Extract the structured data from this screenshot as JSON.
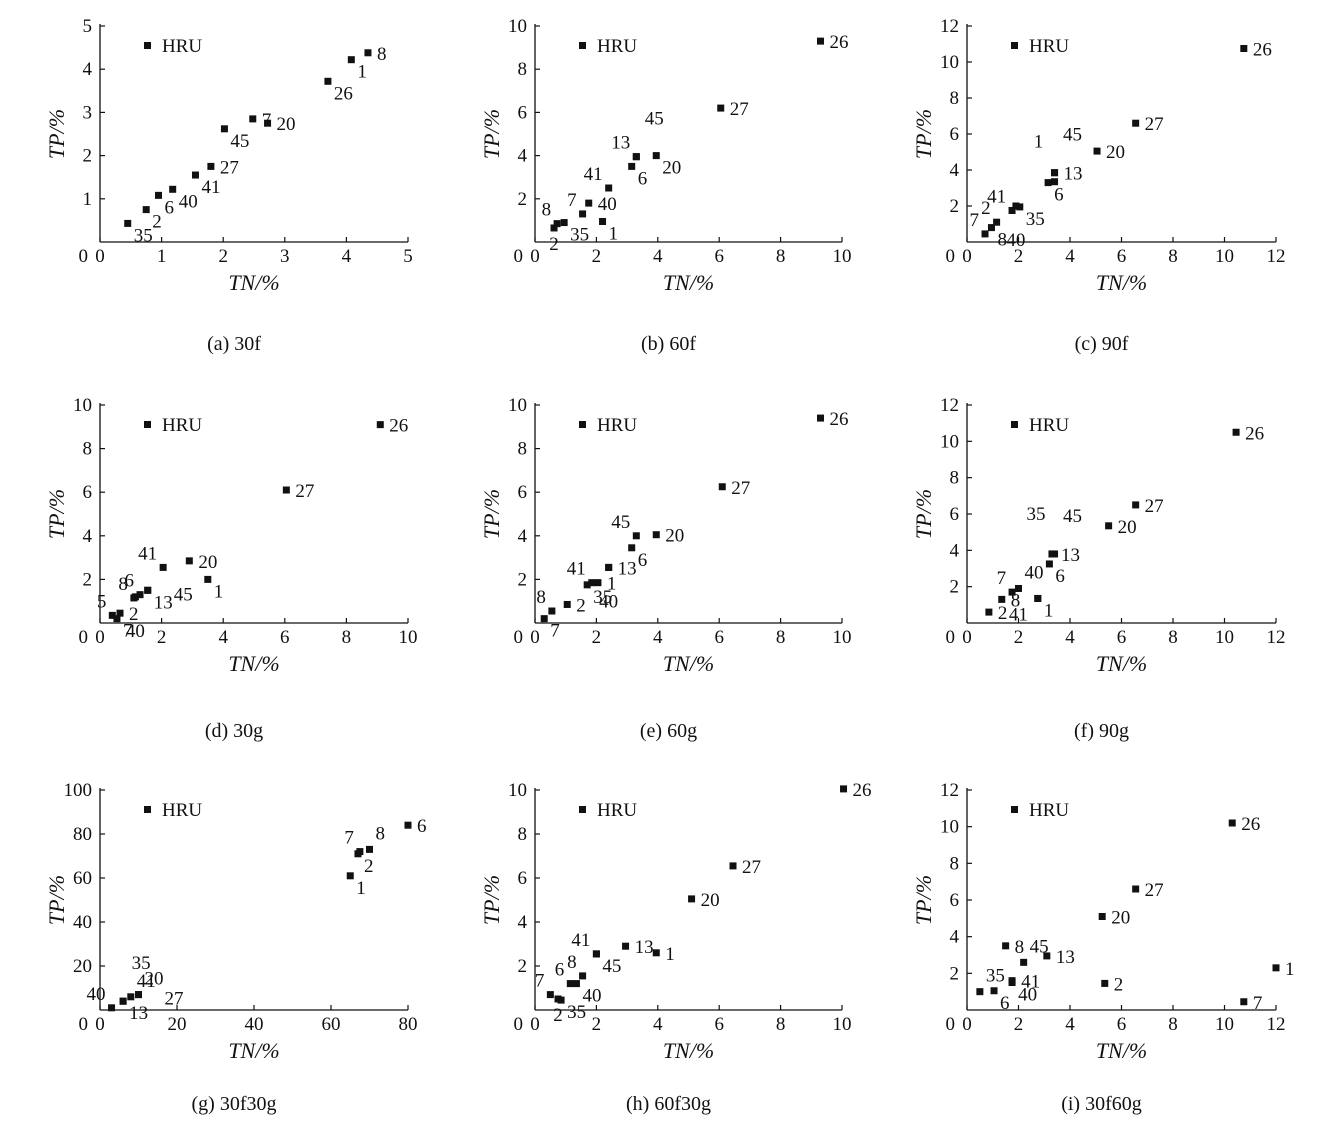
{
  "chart_data": [
    {
      "id": "a",
      "caption": "(a) 30f",
      "type": "scatter",
      "xlabel": "TN/%",
      "ylabel": "TP/%",
      "xlim": [
        0,
        5
      ],
      "ylim": [
        0,
        5
      ],
      "xticks": [
        0,
        1,
        2,
        3,
        4,
        5
      ],
      "yticks": [
        1,
        2,
        3,
        4,
        5
      ],
      "legend": "HRU",
      "legend_position": "top-left",
      "points": [
        {
          "label": "35",
          "x": 0.45,
          "y": 0.43,
          "pos": "below-right"
        },
        {
          "label": "2",
          "x": 0.75,
          "y": 0.75,
          "pos": "below-right"
        },
        {
          "label": "6",
          "x": 0.95,
          "y": 1.08,
          "pos": "below-right"
        },
        {
          "label": "40",
          "x": 1.18,
          "y": 1.22,
          "pos": "below-right"
        },
        {
          "label": "41",
          "x": 1.55,
          "y": 1.55,
          "pos": "below-right"
        },
        {
          "label": "27",
          "x": 1.8,
          "y": 1.75,
          "pos": "right"
        },
        {
          "label": "45",
          "x": 2.02,
          "y": 2.62,
          "pos": "below-right"
        },
        {
          "label": "7",
          "x": 2.48,
          "y": 2.85,
          "pos": "right"
        },
        {
          "label": "20",
          "x": 2.72,
          "y": 2.75,
          "pos": "right"
        },
        {
          "label": "26",
          "x": 3.7,
          "y": 3.72,
          "pos": "below-right"
        },
        {
          "label": "1",
          "x": 4.08,
          "y": 4.22,
          "pos": "below-right"
        },
        {
          "label": "8",
          "x": 4.35,
          "y": 4.38,
          "pos": "right"
        }
      ]
    },
    {
      "id": "b",
      "caption": "(b) 60f",
      "type": "scatter",
      "xlabel": "TN/%",
      "ylabel": "TP/%",
      "xlim": [
        0,
        10
      ],
      "ylim": [
        0,
        10
      ],
      "xticks": [
        0,
        2,
        4,
        6,
        8,
        10
      ],
      "yticks": [
        2,
        4,
        6,
        8,
        10
      ],
      "legend": "HRU",
      "legend_position": "top-left",
      "points": [
        {
          "label": "2",
          "x": 0.62,
          "y": 0.65,
          "pos": "below"
        },
        {
          "label": "8",
          "x": 0.72,
          "y": 0.85,
          "pos": "above-left"
        },
        {
          "label": "35",
          "x": 0.95,
          "y": 0.9,
          "pos": "below-right"
        },
        {
          "label": "7",
          "x": 1.55,
          "y": 1.3,
          "pos": "above-left"
        },
        {
          "label": "40",
          "x": 1.75,
          "y": 1.8,
          "pos": "right"
        },
        {
          "label": "1",
          "x": 2.2,
          "y": 0.95,
          "pos": "below-right"
        },
        {
          "label": "41",
          "x": 2.4,
          "y": 2.5,
          "pos": "above-left"
        },
        {
          "label": "6",
          "x": 3.15,
          "y": 3.5,
          "pos": "below-right"
        },
        {
          "label": "13",
          "x": 3.3,
          "y": 3.95,
          "pos": "above-left"
        },
        {
          "label": "45",
          "x": 3.3,
          "y": 3.95,
          "pos": "above-far"
        },
        {
          "label": "20",
          "x": 3.95,
          "y": 4.0,
          "pos": "below-right"
        },
        {
          "label": "27",
          "x": 6.05,
          "y": 6.2,
          "pos": "right"
        },
        {
          "label": "26",
          "x": 9.3,
          "y": 9.3,
          "pos": "right"
        }
      ]
    },
    {
      "id": "c",
      "caption": "(c) 90f",
      "type": "scatter",
      "xlabel": "TN/%",
      "ylabel": "TP/%",
      "xlim": [
        0,
        12
      ],
      "ylim": [
        0,
        12
      ],
      "xticks": [
        0,
        2,
        4,
        6,
        8,
        10,
        12
      ],
      "yticks": [
        2,
        4,
        6,
        8,
        10,
        12
      ],
      "legend": "HRU",
      "legend_position": "top-left",
      "points": [
        {
          "label": "7",
          "x": 0.7,
          "y": 0.45,
          "pos": "above-left"
        },
        {
          "label": "8",
          "x": 0.95,
          "y": 0.8,
          "pos": "below-right"
        },
        {
          "label": "2",
          "x": 1.15,
          "y": 1.1,
          "pos": "above-left"
        },
        {
          "label": "40",
          "x": 1.9,
          "y": 2.0,
          "pos": "below-far"
        },
        {
          "label": "41",
          "x": 1.75,
          "y": 1.75,
          "pos": "above-left"
        },
        {
          "label": "35",
          "x": 2.05,
          "y": 1.95,
          "pos": "below-right"
        },
        {
          "label": "6",
          "x": 3.15,
          "y": 3.3,
          "pos": "below-right"
        },
        {
          "label": "1",
          "x": 3.4,
          "y": 3.35,
          "pos": "above-left-far"
        },
        {
          "label": "13",
          "x": 3.4,
          "y": 3.85,
          "pos": "right"
        },
        {
          "label": "45",
          "x": 3.4,
          "y": 3.85,
          "pos": "above-far"
        },
        {
          "label": "20",
          "x": 5.05,
          "y": 5.05,
          "pos": "right"
        },
        {
          "label": "27",
          "x": 6.55,
          "y": 6.6,
          "pos": "right"
        },
        {
          "label": "26",
          "x": 10.75,
          "y": 10.75,
          "pos": "right"
        }
      ]
    },
    {
      "id": "d",
      "caption": "(d) 30g",
      "type": "scatter",
      "xlabel": "TN/%",
      "ylabel": "TP/%",
      "xlim": [
        0,
        10
      ],
      "ylim": [
        0,
        10
      ],
      "xticks": [
        0,
        2,
        4,
        6,
        8,
        10
      ],
      "yticks": [
        2,
        4,
        6,
        8,
        10
      ],
      "legend": "HRU",
      "legend_position": "top-left",
      "points": [
        {
          "label": "5",
          "x": 0.4,
          "y": 0.35,
          "pos": "above-left"
        },
        {
          "label": "7",
          "x": 0.55,
          "y": 0.2,
          "pos": "below-right"
        },
        {
          "label": "2",
          "x": 0.65,
          "y": 0.45,
          "pos": "right"
        },
        {
          "label": "8",
          "x": 1.1,
          "y": 1.15,
          "pos": "above-left"
        },
        {
          "label": "40",
          "x": 1.15,
          "y": 1.2,
          "pos": "below-far"
        },
        {
          "label": "6",
          "x": 1.3,
          "y": 1.3,
          "pos": "above-left"
        },
        {
          "label": "13",
          "x": 1.55,
          "y": 1.5,
          "pos": "below-right"
        },
        {
          "label": "45",
          "x": 1.55,
          "y": 1.5,
          "pos": "right-far"
        },
        {
          "label": "41",
          "x": 2.05,
          "y": 2.55,
          "pos": "above-left"
        },
        {
          "label": "20",
          "x": 2.9,
          "y": 2.85,
          "pos": "right"
        },
        {
          "label": "1",
          "x": 3.5,
          "y": 2.0,
          "pos": "below-right"
        },
        {
          "label": "27",
          "x": 6.05,
          "y": 6.1,
          "pos": "right"
        },
        {
          "label": "26",
          "x": 9.1,
          "y": 9.1,
          "pos": "right"
        }
      ]
    },
    {
      "id": "e",
      "caption": "(e) 60g",
      "type": "scatter",
      "xlabel": "TN/%",
      "ylabel": "TP/%",
      "xlim": [
        0,
        10
      ],
      "ylim": [
        0,
        10
      ],
      "xticks": [
        0,
        2,
        4,
        6,
        8,
        10
      ],
      "yticks": [
        2,
        4,
        6,
        8,
        10
      ],
      "legend": "HRU",
      "legend_position": "top-left",
      "points": [
        {
          "label": "7",
          "x": 0.3,
          "y": 0.2,
          "pos": "below-right"
        },
        {
          "label": "8",
          "x": 0.55,
          "y": 0.55,
          "pos": "above-left"
        },
        {
          "label": "2",
          "x": 1.05,
          "y": 0.85,
          "pos": "right"
        },
        {
          "label": "35",
          "x": 1.7,
          "y": 1.75,
          "pos": "below-right"
        },
        {
          "label": "41",
          "x": 1.85,
          "y": 1.85,
          "pos": "above-left"
        },
        {
          "label": "1",
          "x": 2.05,
          "y": 1.85,
          "pos": "right"
        },
        {
          "label": "13",
          "x": 2.4,
          "y": 2.55,
          "pos": "right"
        },
        {
          "label": "40",
          "x": 2.4,
          "y": 2.55,
          "pos": "below-far"
        },
        {
          "label": "6",
          "x": 3.15,
          "y": 3.45,
          "pos": "below-right"
        },
        {
          "label": "45",
          "x": 3.3,
          "y": 4.0,
          "pos": "above-left"
        },
        {
          "label": "20",
          "x": 3.95,
          "y": 4.05,
          "pos": "right"
        },
        {
          "label": "27",
          "x": 6.1,
          "y": 6.25,
          "pos": "right"
        },
        {
          "label": "26",
          "x": 9.3,
          "y": 9.4,
          "pos": "right"
        }
      ]
    },
    {
      "id": "f",
      "caption": "(f) 90g",
      "type": "scatter",
      "xlabel": "TN/%",
      "ylabel": "TP/%",
      "xlim": [
        0,
        12
      ],
      "ylim": [
        0,
        12
      ],
      "xticks": [
        0,
        2,
        4,
        6,
        8,
        10,
        12
      ],
      "yticks": [
        2,
        4,
        6,
        8,
        10,
        12
      ],
      "legend": "HRU",
      "legend_position": "top-left",
      "points": [
        {
          "label": "2",
          "x": 0.85,
          "y": 0.6,
          "pos": "right"
        },
        {
          "label": "8",
          "x": 1.35,
          "y": 1.3,
          "pos": "right"
        },
        {
          "label": "7",
          "x": 1.75,
          "y": 1.7,
          "pos": "above-left"
        },
        {
          "label": "40",
          "x": 2.0,
          "y": 1.9,
          "pos": "above-right"
        },
        {
          "label": "41",
          "x": 2.75,
          "y": 1.35,
          "pos": "below-left"
        },
        {
          "label": "1",
          "x": 2.75,
          "y": 1.35,
          "pos": "below-right"
        },
        {
          "label": "6",
          "x": 3.2,
          "y": 3.25,
          "pos": "below-right"
        },
        {
          "label": "13",
          "x": 3.3,
          "y": 3.8,
          "pos": "right"
        },
        {
          "label": "35",
          "x": 3.3,
          "y": 3.8,
          "pos": "above-left-far"
        },
        {
          "label": "45",
          "x": 3.4,
          "y": 3.8,
          "pos": "above-far"
        },
        {
          "label": "20",
          "x": 5.5,
          "y": 5.35,
          "pos": "right"
        },
        {
          "label": "27",
          "x": 6.55,
          "y": 6.5,
          "pos": "right"
        },
        {
          "label": "26",
          "x": 10.45,
          "y": 10.5,
          "pos": "right"
        }
      ]
    },
    {
      "id": "g",
      "caption": "(g) 30f30g",
      "type": "scatter",
      "xlabel": "TN/%",
      "ylabel": "TP/%",
      "xlim": [
        0,
        80
      ],
      "ylim": [
        0,
        100
      ],
      "xticks": [
        0,
        20,
        40,
        60,
        80
      ],
      "yticks": [
        20,
        40,
        60,
        80,
        100
      ],
      "legend": "HRU",
      "legend_position": "top-left",
      "points": [
        {
          "label": "40",
          "x": 3.0,
          "y": 1.0,
          "pos": "above-left"
        },
        {
          "label": "13",
          "x": 6.0,
          "y": 4.0,
          "pos": "below-right"
        },
        {
          "label": "41",
          "x": 8.0,
          "y": 6.0,
          "pos": "above-right"
        },
        {
          "label": "35",
          "x": 6.0,
          "y": 4.0,
          "pos": "above-far"
        },
        {
          "label": "20",
          "x": 10.0,
          "y": 7.0,
          "pos": "above-right"
        },
        {
          "label": "27",
          "x": 10.0,
          "y": 7.0,
          "pos": "right-far"
        },
        {
          "label": "1",
          "x": 65.0,
          "y": 61.0,
          "pos": "below-right"
        },
        {
          "label": "2",
          "x": 67.0,
          "y": 71.0,
          "pos": "below-right"
        },
        {
          "label": "7",
          "x": 67.5,
          "y": 72.0,
          "pos": "above-left"
        },
        {
          "label": "8",
          "x": 70.0,
          "y": 73.0,
          "pos": "above-right"
        },
        {
          "label": "6",
          "x": 80.0,
          "y": 84.0,
          "pos": "right"
        }
      ]
    },
    {
      "id": "h",
      "caption": "(h) 60f30g",
      "type": "scatter",
      "xlabel": "TN/%",
      "ylabel": "TP/%",
      "xlim": [
        0,
        10
      ],
      "ylim": [
        0,
        10
      ],
      "xticks": [
        0,
        2,
        4,
        6,
        8,
        10
      ],
      "yticks": [
        2,
        4,
        6,
        8,
        10
      ],
      "legend": "HRU",
      "legend_position": "top-left",
      "points": [
        {
          "label": "7",
          "x": 0.5,
          "y": 0.7,
          "pos": "above-left"
        },
        {
          "label": "2",
          "x": 0.75,
          "y": 0.5,
          "pos": "below"
        },
        {
          "label": "35",
          "x": 0.85,
          "y": 0.45,
          "pos": "below-right"
        },
        {
          "label": "6",
          "x": 1.15,
          "y": 1.2,
          "pos": "above-left"
        },
        {
          "label": "40",
          "x": 1.35,
          "y": 1.2,
          "pos": "below-right"
        },
        {
          "label": "8",
          "x": 1.55,
          "y": 1.55,
          "pos": "above-left"
        },
        {
          "label": "41",
          "x": 2.0,
          "y": 2.55,
          "pos": "above-left"
        },
        {
          "label": "45",
          "x": 2.0,
          "y": 2.55,
          "pos": "below-right"
        },
        {
          "label": "13",
          "x": 2.95,
          "y": 2.9,
          "pos": "right"
        },
        {
          "label": "1",
          "x": 3.95,
          "y": 2.6,
          "pos": "right"
        },
        {
          "label": "20",
          "x": 5.1,
          "y": 5.05,
          "pos": "right"
        },
        {
          "label": "27",
          "x": 6.45,
          "y": 6.55,
          "pos": "right"
        },
        {
          "label": "26",
          "x": 10.05,
          "y": 10.05,
          "pos": "right"
        }
      ]
    },
    {
      "id": "i",
      "caption": "(i) 30f60g",
      "type": "scatter",
      "xlabel": "TN/%",
      "ylabel": "TP/%",
      "xlim": [
        0,
        12
      ],
      "ylim": [
        0,
        12
      ],
      "xticks": [
        0,
        2,
        4,
        6,
        8,
        10,
        12
      ],
      "yticks": [
        2,
        4,
        6,
        8,
        10,
        12
      ],
      "legend": "HRU",
      "legend_position": "top-left",
      "points": [
        {
          "label": "35",
          "x": 0.5,
          "y": 1.0,
          "pos": "above-right"
        },
        {
          "label": "6",
          "x": 1.05,
          "y": 1.05,
          "pos": "below-right"
        },
        {
          "label": "40",
          "x": 1.75,
          "y": 1.5,
          "pos": "below-right"
        },
        {
          "label": "8",
          "x": 1.5,
          "y": 3.5,
          "pos": "right"
        },
        {
          "label": "41",
          "x": 1.75,
          "y": 1.6,
          "pos": "right"
        },
        {
          "label": "45",
          "x": 2.2,
          "y": 2.6,
          "pos": "above-right"
        },
        {
          "label": "13",
          "x": 3.1,
          "y": 2.95,
          "pos": "right"
        },
        {
          "label": "2",
          "x": 5.35,
          "y": 1.45,
          "pos": "right"
        },
        {
          "label": "20",
          "x": 5.25,
          "y": 5.1,
          "pos": "right"
        },
        {
          "label": "27",
          "x": 6.55,
          "y": 6.6,
          "pos": "right"
        },
        {
          "label": "7",
          "x": 10.75,
          "y": 0.45,
          "pos": "right"
        },
        {
          "label": "26",
          "x": 10.3,
          "y": 10.2,
          "pos": "right"
        },
        {
          "label": "1",
          "x": 12.0,
          "y": 2.3,
          "pos": "right"
        }
      ]
    }
  ]
}
